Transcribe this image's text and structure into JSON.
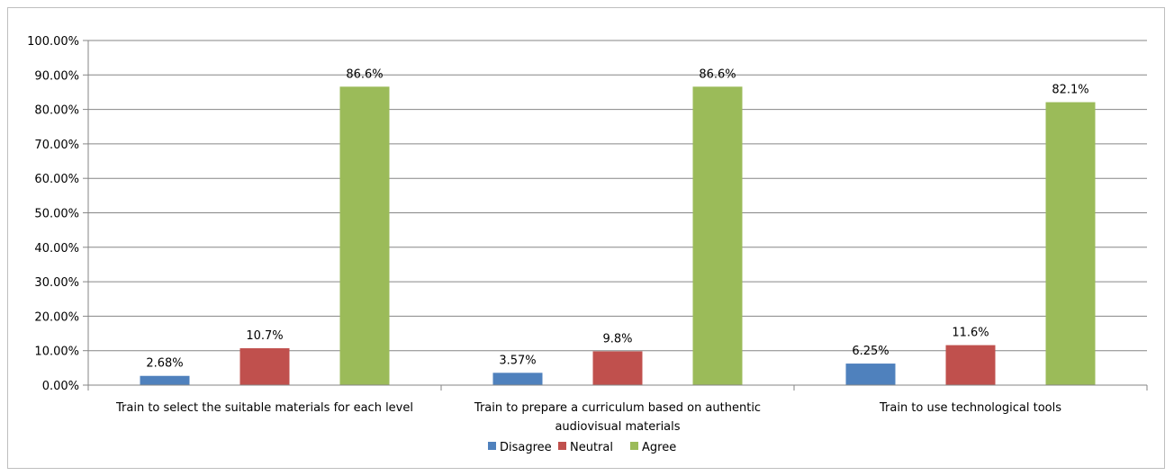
{
  "chart_data": {
    "type": "bar",
    "categories": [
      [
        "Train to select the suitable materials for each level"
      ],
      [
        "Train to prepare a curriculum based on authentic",
        "audiovisual materials"
      ],
      [
        "Train to use technological tools"
      ]
    ],
    "series": [
      {
        "name": "Disagree",
        "color": "#4f81bd",
        "values": [
          2.68,
          3.57,
          6.25
        ],
        "labels": [
          "2.68%",
          "3.57%",
          "6.25%"
        ]
      },
      {
        "name": "Neutral",
        "color": "#c0504d",
        "values": [
          10.7,
          9.8,
          11.6
        ],
        "labels": [
          "10.7%",
          "9.8%",
          "11.6%"
        ]
      },
      {
        "name": "Agree",
        "color": "#9bbb59",
        "values": [
          86.6,
          86.6,
          82.1
        ],
        "labels": [
          "86.6%",
          "86.6%",
          "82.1%"
        ]
      }
    ],
    "y_ticks": [
      "0.00%",
      "10.00%",
      "20.00%",
      "30.00%",
      "40.00%",
      "50.00%",
      "60.00%",
      "70.00%",
      "80.00%",
      "90.00%",
      "100.00%"
    ],
    "ylim": [
      0,
      100
    ],
    "grid": true,
    "legend_position": "bottom",
    "title": "",
    "xlabel": "",
    "ylabel": ""
  }
}
